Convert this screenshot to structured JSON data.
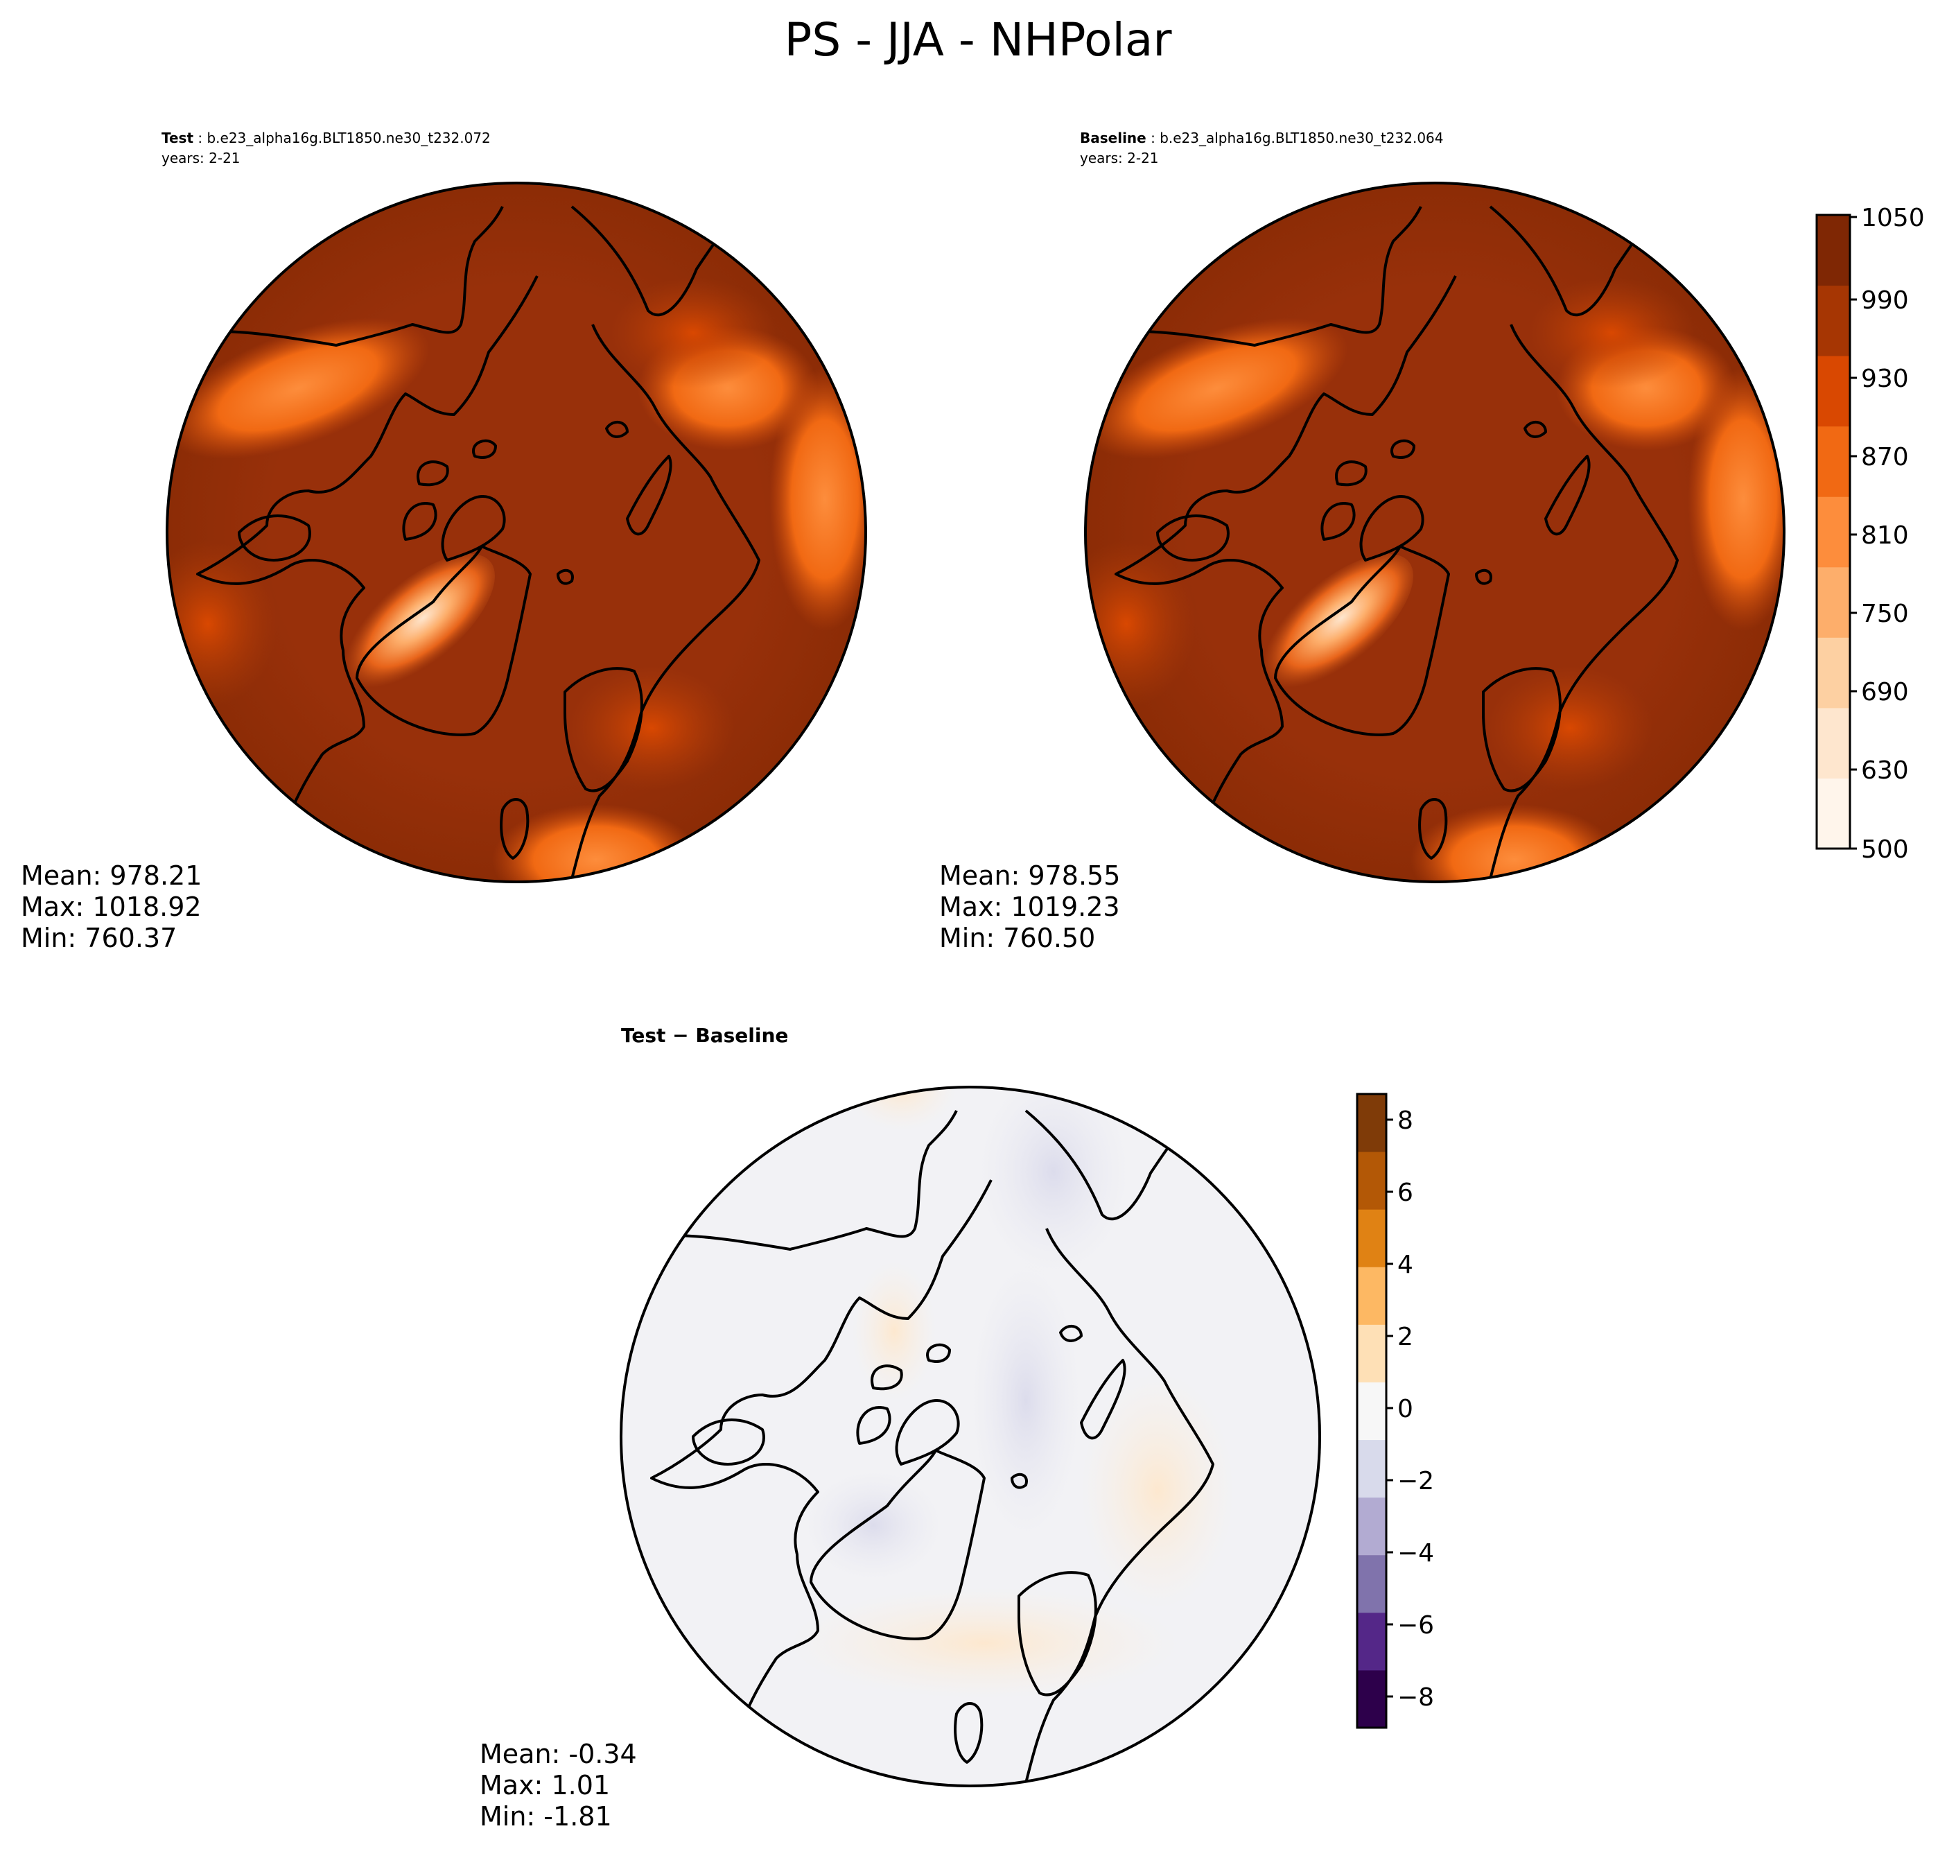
{
  "figure": {
    "title": "PS - JJA - NHPolar"
  },
  "panels": {
    "test": {
      "label": "Test",
      "case": " : b.e23_alpha16g.BLT1850.ne30_t232.072",
      "years": "years: 2-21",
      "stats": {
        "mean": "Mean: 978.21",
        "max": "Max: 1018.92",
        "min": "Min: 760.37"
      }
    },
    "baseline": {
      "label": "Baseline",
      "case": " : b.e23_alpha16g.BLT1850.ne30_t232.064",
      "years": "years: 2-21",
      "stats": {
        "mean": "Mean: 978.55",
        "max": "Max: 1019.23",
        "min": "Min: 760.50"
      }
    },
    "diff": {
      "label": "Test − Baseline",
      "stats": {
        "mean": "Mean: -0.34",
        "max": "Max:  1.01",
        "min": "Min: -1.81"
      }
    }
  },
  "colorbars": {
    "field": {
      "ticks": [
        "500",
        "630",
        "690",
        "750",
        "810",
        "870",
        "930",
        "990",
        "1050"
      ],
      "colors": [
        "#fff5eb",
        "#fee6ce",
        "#fdd0a2",
        "#fdae6b",
        "#fd8d3c",
        "#f16913",
        "#d94801",
        "#a63603",
        "#7f2704"
      ]
    },
    "diff": {
      "ticks": [
        "−8",
        "−6",
        "−4",
        "−2",
        "0",
        "2",
        "4",
        "6",
        "8"
      ],
      "colors": [
        "#2d004b",
        "#542788",
        "#8073ac",
        "#b2abd2",
        "#d8daeb",
        "#f7f7f7",
        "#fee0b6",
        "#fdb863",
        "#e08214",
        "#b35806",
        "#7f3b08"
      ]
    }
  }
}
